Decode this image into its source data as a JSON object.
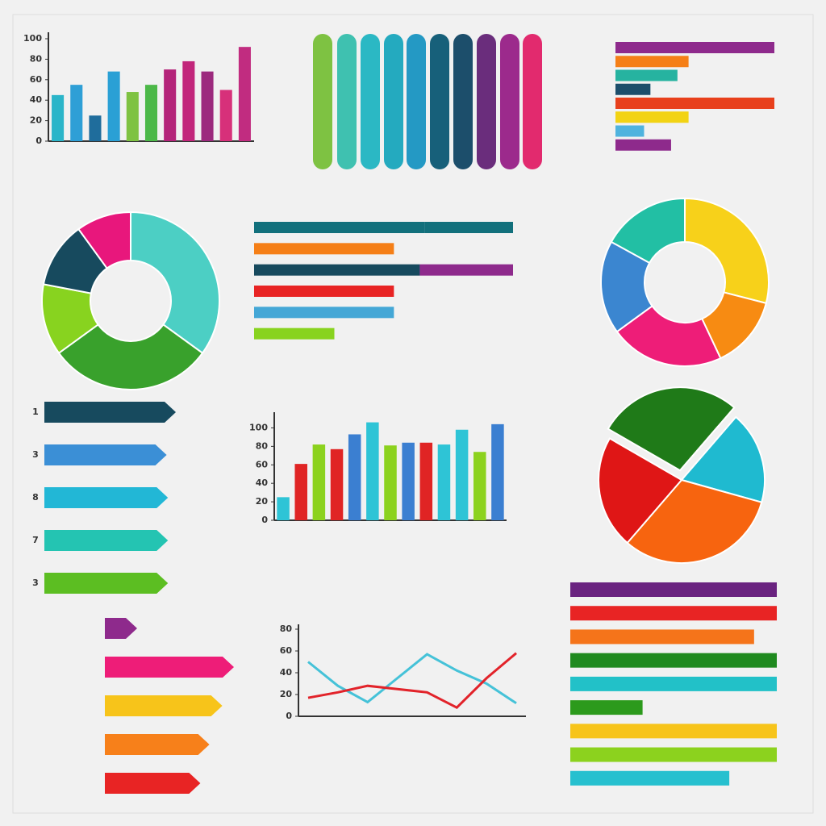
{
  "chart_data": [
    {
      "type": "bar",
      "ylim": [
        0,
        100
      ],
      "yticks": [
        0,
        20,
        40,
        60,
        80,
        100
      ],
      "values": [
        45,
        55,
        25,
        68,
        48,
        55,
        70,
        78,
        68,
        50,
        92
      ],
      "colors": [
        "#2bb5c9",
        "#2e9fd6",
        "#1f6d9c",
        "#2aa0d5",
        "#7ec242",
        "#4cb848",
        "#b4247a",
        "#c2267b",
        "#9c2a7e",
        "#d7307a",
        "#c12c80"
      ]
    },
    {
      "type": "hbar",
      "xlim": [
        0,
        100
      ],
      "values": [
        100,
        46,
        39,
        22,
        100,
        46,
        18,
        35
      ],
      "colors": [
        "#8e2a8c",
        "#f57f17",
        "#26b3a0",
        "#1c4e6b",
        "#e8401c",
        "#f2d314",
        "#4fb3de",
        "#8e2a8c"
      ]
    },
    {
      "type": "donut",
      "values": [
        35,
        30,
        13,
        12,
        10
      ],
      "colors": [
        "#4ccfc4",
        "#39a12c",
        "#88d31f",
        "#174a5e",
        "#e8177c"
      ]
    },
    {
      "type": "hbar",
      "xlim": [
        0,
        100
      ],
      "series": [
        {
          "values": [
            66,
            54,
            64,
            54,
            54,
            31
          ],
          "colors": [
            "#12707c",
            "#f57f17",
            "#174a5e",
            "#e82424",
            "#44a7d6",
            "#88d31f"
          ]
        },
        {
          "values": [
            34,
            0,
            36,
            0,
            0,
            0
          ],
          "colors": [
            "#12707c",
            "#f57f17",
            "#8e2a8c",
            "#e82424",
            "#44a7d6",
            "#88d31f"
          ]
        }
      ]
    },
    {
      "type": "donut",
      "values": [
        29,
        14,
        22,
        18,
        17
      ],
      "colors": [
        "#f7d11a",
        "#f78b12",
        "#ee1d78",
        "#3b86d0",
        "#22bfa4"
      ]
    },
    {
      "type": "bar",
      "ylim": [
        0,
        110
      ],
      "yticks": [
        0,
        20,
        40,
        60,
        80,
        100
      ],
      "values": [
        25,
        61,
        82,
        77,
        93,
        106,
        81,
        84,
        84,
        82,
        98,
        74,
        104
      ],
      "colors": [
        "#2ec4d6",
        "#e02424",
        "#8cd21e",
        "#e02424",
        "#3b7fd1",
        "#2ec4d6",
        "#8cd21e",
        "#3b7fd1",
        "#e02424",
        "#2ec4d6",
        "#2ec4d6",
        "#8cd21e",
        "#3b7fd1"
      ]
    },
    {
      "type": "pie",
      "values": [
        28,
        18,
        32,
        22
      ],
      "colors": [
        "#1f7a18",
        "#1fbad0",
        "#f7640f",
        "#df1616"
      ]
    },
    {
      "type": "line",
      "ylim": [
        0,
        80
      ],
      "yticks": [
        0,
        20,
        40,
        60,
        80
      ],
      "series": [
        {
          "color": "#45c2d8",
          "values": [
            50,
            28,
            13,
            35,
            57,
            42,
            30,
            12
          ]
        },
        {
          "color": "#e2232a",
          "values": [
            17,
            22,
            28,
            25,
            22,
            8,
            35,
            58
          ]
        }
      ]
    },
    {
      "type": "hbar",
      "xlim": [
        0,
        100
      ],
      "values": [
        100,
        100,
        89,
        100,
        100,
        35,
        100,
        100,
        77
      ],
      "colors": [
        "#6a2380",
        "#e82424",
        "#f5741a",
        "#1f8a1f",
        "#22c1c8",
        "#2c9a1c",
        "#f7c41a",
        "#8cd21e",
        "#27c0cf"
      ]
    },
    {
      "type": "arrow",
      "xlim": [
        0,
        100
      ],
      "categories": [
        "1",
        "3",
        "8",
        "7",
        "3"
      ],
      "values": [
        100,
        93,
        94,
        94,
        94
      ],
      "colors": [
        "#174a5e",
        "#3b8fd6",
        "#22b7d6",
        "#24c4b2",
        "#5cbe22"
      ]
    },
    {
      "type": "arrow",
      "xlim": [
        0,
        100
      ],
      "values": [
        25,
        100,
        91,
        81,
        74
      ],
      "colors": [
        "#8e2a8c",
        "#ee1d78",
        "#f7c41a",
        "#f7801a",
        "#e82424"
      ]
    }
  ]
}
